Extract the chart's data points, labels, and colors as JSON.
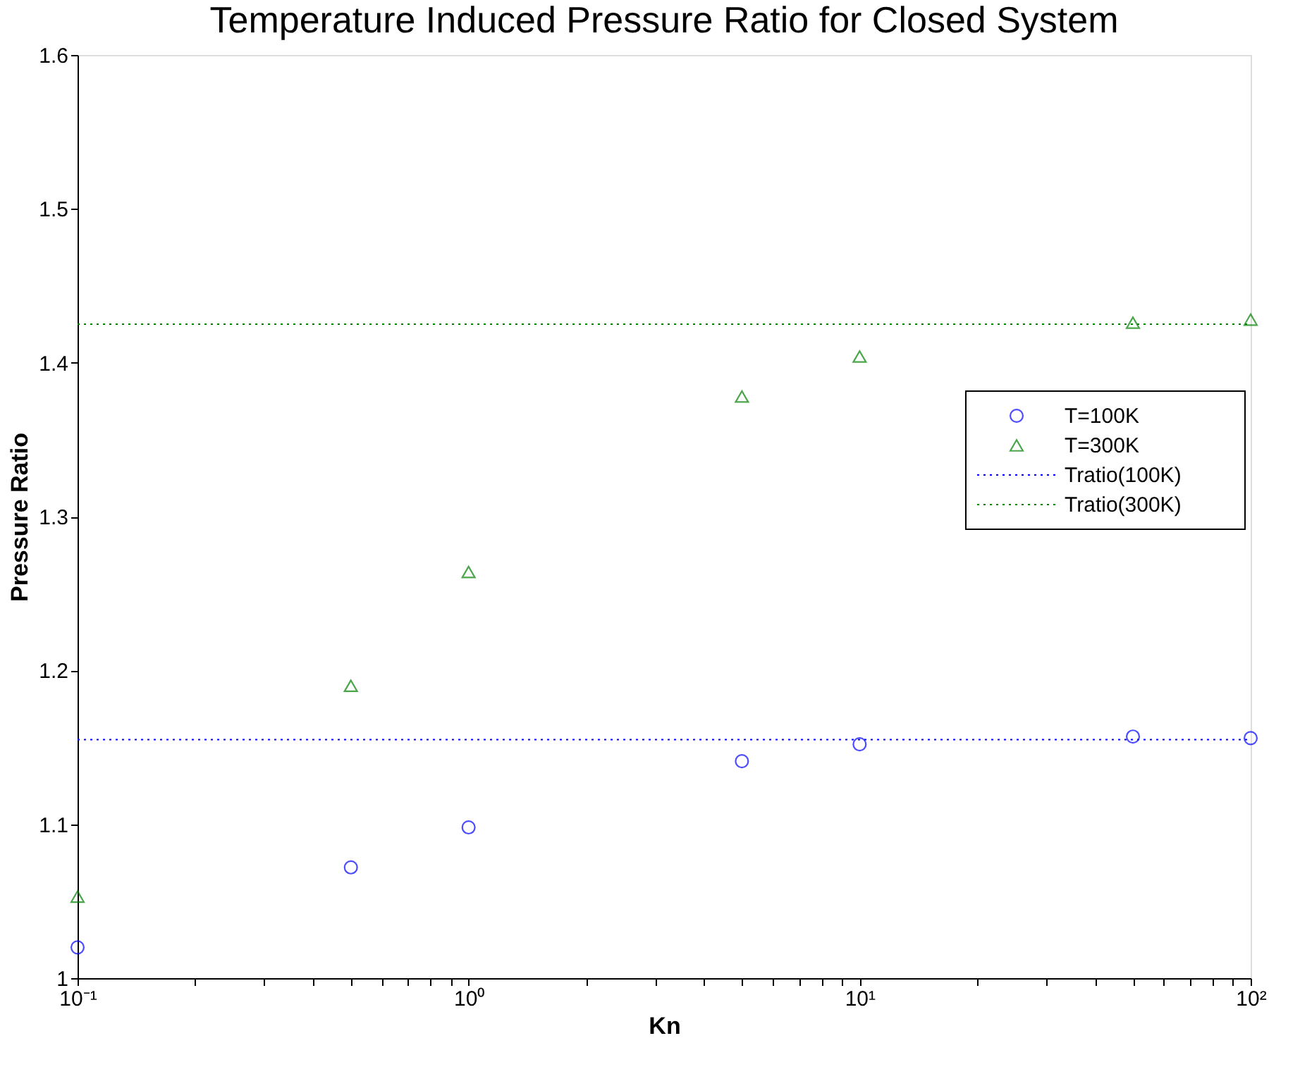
{
  "chart_data": {
    "type": "scatter",
    "title": "Temperature Induced Pressure Ratio for Closed System",
    "xlabel": "Kn",
    "ylabel": "Pressure Ratio",
    "log": "x",
    "legend": "right",
    "grid": false,
    "x": [
      0.1,
      0.5,
      1,
      5,
      10,
      50,
      100
    ],
    "series": [
      {
        "name": "T=100K",
        "color": "#0000ff",
        "marker": "circle",
        "values": [
          1.02,
          1.072,
          1.098,
          1.141,
          1.152,
          1.157,
          1.156
        ]
      },
      {
        "name": "T=300K",
        "color": "#008000",
        "marker": "triangle",
        "values": [
          1.053,
          1.19,
          1.264,
          1.378,
          1.404,
          1.426,
          1.428
        ]
      }
    ],
    "ref_lines": [
      {
        "axis": "y",
        "value": 1.155,
        "label": "Tratio(100K)",
        "color": "#0000ff",
        "line_style": "dotted"
      },
      {
        "axis": "y",
        "value": 1.425,
        "label": "Tratio(300K)",
        "color": "#008000",
        "line_style": "dotted"
      }
    ],
    "xlim": [
      0.1,
      100
    ],
    "xticks": [
      {
        "value": 0.1,
        "label": "10⁻¹"
      },
      {
        "value": 0.2,
        "label": null
      },
      {
        "value": 0.3,
        "label": null
      },
      {
        "value": 0.4,
        "label": null
      },
      {
        "value": 0.5,
        "label": null
      },
      {
        "value": 0.6,
        "label": null
      },
      {
        "value": 0.7,
        "label": null
      },
      {
        "value": 0.8,
        "label": null
      },
      {
        "value": 0.9,
        "label": null
      },
      {
        "value": 1,
        "label": "10⁰"
      },
      {
        "value": 2,
        "label": null
      },
      {
        "value": 3,
        "label": null
      },
      {
        "value": 4,
        "label": null
      },
      {
        "value": 5,
        "label": null
      },
      {
        "value": 6,
        "label": null
      },
      {
        "value": 7,
        "label": null
      },
      {
        "value": 8,
        "label": null
      },
      {
        "value": 9,
        "label": null
      },
      {
        "value": 10,
        "label": "10¹"
      },
      {
        "value": 20,
        "label": null
      },
      {
        "value": 30,
        "label": null
      },
      {
        "value": 40,
        "label": null
      },
      {
        "value": 50,
        "label": null
      },
      {
        "value": 60,
        "label": null
      },
      {
        "value": 70,
        "label": null
      },
      {
        "value": 80,
        "label": null
      },
      {
        "value": 90,
        "label": null
      },
      {
        "value": 100,
        "label": "10²"
      }
    ],
    "ylim": [
      1,
      1.6
    ],
    "yticks": [
      1,
      1.1,
      1.2,
      1.3,
      1.4,
      1.5,
      1.6
    ]
  }
}
